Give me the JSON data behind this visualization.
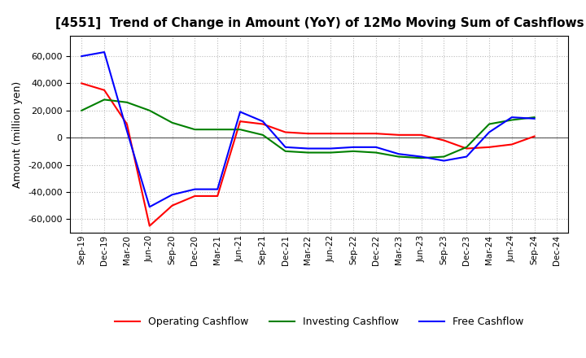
{
  "title": "[4551]  Trend of Change in Amount (YoY) of 12Mo Moving Sum of Cashflows",
  "ylabel": "Amount (million yen)",
  "xlabels": [
    "Sep-19",
    "Dec-19",
    "Mar-20",
    "Jun-20",
    "Sep-20",
    "Dec-20",
    "Mar-21",
    "Jun-21",
    "Sep-21",
    "Dec-21",
    "Mar-22",
    "Jun-22",
    "Sep-22",
    "Dec-22",
    "Mar-23",
    "Jun-23",
    "Sep-23",
    "Dec-23",
    "Mar-24",
    "Jun-24",
    "Sep-24",
    "Dec-24"
  ],
  "operating": [
    40000,
    35000,
    10000,
    -65000,
    -50000,
    -43000,
    -43000,
    12000,
    10000,
    4000,
    3000,
    3000,
    3000,
    3000,
    2000,
    2000,
    -2000,
    -8000,
    -7000,
    -5000,
    1000,
    null
  ],
  "investing": [
    20000,
    28000,
    26000,
    20000,
    11000,
    6000,
    6000,
    6000,
    2000,
    -10000,
    -11000,
    -11000,
    -10000,
    -11000,
    -14000,
    -15000,
    -14000,
    -7000,
    10000,
    13000,
    15000,
    null
  ],
  "free": [
    60000,
    63000,
    5000,
    -51000,
    -42000,
    -38000,
    -38000,
    19000,
    12000,
    -7000,
    -8000,
    -8000,
    -7000,
    -7000,
    -12000,
    -14000,
    -17000,
    -14000,
    4000,
    15000,
    14000,
    null
  ],
  "ylim": [
    -70000,
    75000
  ],
  "yticks": [
    -60000,
    -40000,
    -20000,
    0,
    20000,
    40000,
    60000
  ],
  "operating_color": "#ff0000",
  "investing_color": "#008000",
  "free_color": "#0000ff",
  "background_color": "#ffffff",
  "grid_color": "#bbbbbb"
}
